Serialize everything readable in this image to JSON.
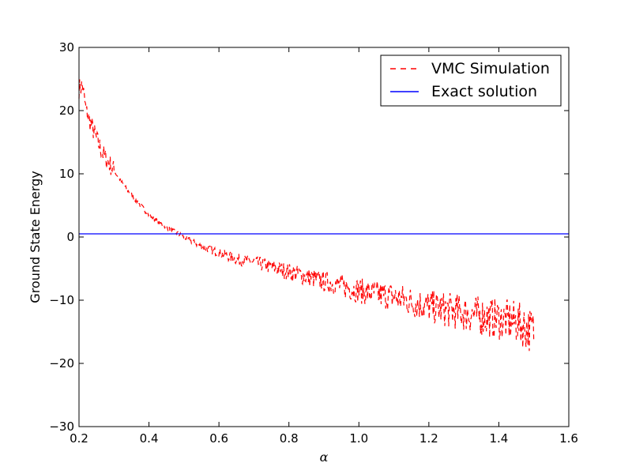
{
  "chart_data": {
    "type": "line",
    "title": "",
    "xlabel": "α",
    "ylabel": "Ground State Energy",
    "xlim": [
      0.2,
      1.6
    ],
    "ylim": [
      -30,
      30
    ],
    "xticks": [
      "0.2",
      "0.4",
      "0.6",
      "0.8",
      "1.0",
      "1.2",
      "1.4",
      "1.6"
    ],
    "yticks": [
      "30",
      "20",
      "10",
      "0",
      "−10",
      "−20",
      "−30"
    ],
    "grid": false,
    "legend_position": "top-right",
    "colors": {
      "vmc": "#ff0000",
      "exact": "#0000ff"
    },
    "series": [
      {
        "name": "VMC Simulation",
        "style": "dashed",
        "x": [
          0.2,
          0.21,
          0.22,
          0.23,
          0.24,
          0.25,
          0.27,
          0.3,
          0.33,
          0.36,
          0.4,
          0.45,
          0.5,
          0.55,
          0.6,
          0.65,
          0.7,
          0.8,
          0.9,
          1.0,
          1.1,
          1.2,
          1.3,
          1.4,
          1.45,
          1.5
        ],
        "y": [
          23.5,
          24.0,
          20.0,
          18.5,
          17.0,
          15.5,
          13.0,
          10.5,
          8.0,
          6.0,
          3.5,
          1.5,
          0.0,
          -1.5,
          -2.5,
          -3.5,
          -4.0,
          -5.5,
          -7.0,
          -8.5,
          -9.5,
          -11.0,
          -12.0,
          -13.0,
          -13.5,
          -15.0
        ]
      },
      {
        "name": "Exact solution",
        "style": "solid",
        "x": [
          0.2,
          1.6
        ],
        "y": [
          0.5,
          0.5
        ]
      }
    ]
  }
}
